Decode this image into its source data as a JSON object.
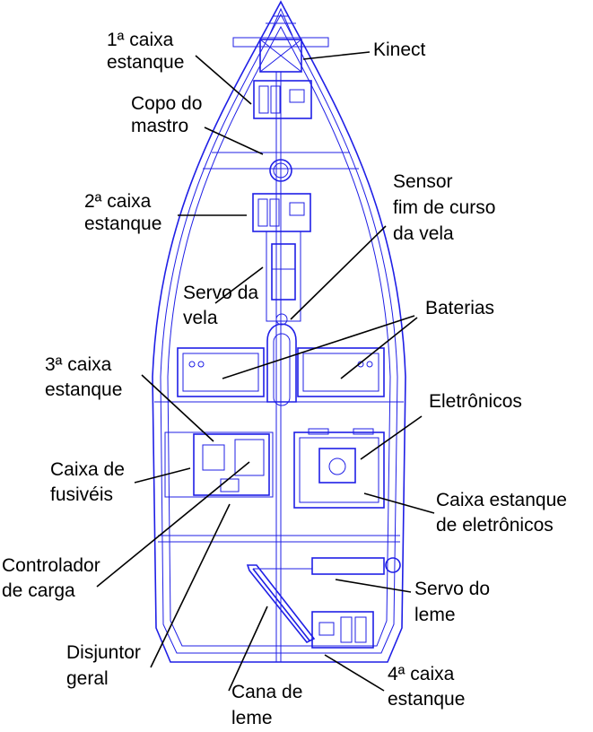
{
  "labels": {
    "box1": [
      "1ª caixa",
      "estanque"
    ],
    "kinect": [
      "Kinect"
    ],
    "mast_cup": [
      "Copo do",
      "mastro"
    ],
    "box2": [
      "2ª caixa",
      "estanque"
    ],
    "sail_sensor": [
      "Sensor",
      "fim de curso",
      "da vela"
    ],
    "sail_servo": [
      "Servo da",
      "vela"
    ],
    "batteries": [
      "Baterias"
    ],
    "box3": [
      "3ª caixa",
      "estanque"
    ],
    "electronics": [
      "Eletrônicos"
    ],
    "fuse_box": [
      "Caixa de",
      "fusivéis"
    ],
    "electronics_box": [
      "Caixa estanque",
      "de eletrônicos"
    ],
    "charge_controller": [
      "Controlador",
      "de carga"
    ],
    "rudder_servo": [
      "Servo do",
      "leme"
    ],
    "main_breaker": [
      "Disjuntor",
      "geral"
    ],
    "tiller": [
      "Cana de",
      "leme"
    ],
    "box4": [
      "4ª caixa",
      "estanque"
    ]
  },
  "colors": {
    "hull": "#1f1fe6",
    "leader": "#000000",
    "text": "#000000"
  }
}
